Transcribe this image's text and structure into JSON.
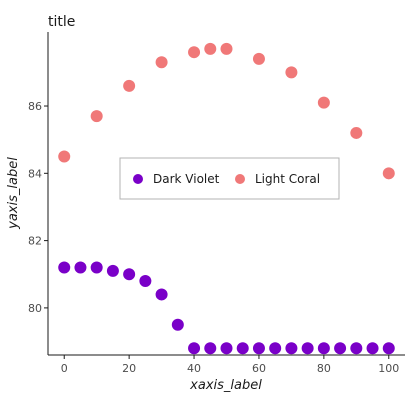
{
  "chart_data": {
    "type": "scatter",
    "title": "title",
    "xlabel": "xaxis_label",
    "ylabel": "yaxis_label",
    "xlim": [
      -5,
      105
    ],
    "ylim": [
      78.6,
      88.2
    ],
    "xticks": [
      0,
      20,
      40,
      60,
      80,
      100
    ],
    "yticks": [
      80,
      82,
      84,
      86
    ],
    "grid": false,
    "legend_position": "center",
    "series": [
      {
        "name": "Dark Violet",
        "color": "#7a00c8",
        "x": [
          0,
          5,
          10,
          15,
          20,
          25,
          30,
          35,
          40,
          45,
          50,
          55,
          60,
          65,
          70,
          75,
          80,
          85,
          90,
          95,
          100
        ],
        "y": [
          81.2,
          81.2,
          81.2,
          81.1,
          81.0,
          80.8,
          80.4,
          79.5,
          78.8,
          78.8,
          78.8,
          78.8,
          78.8,
          78.8,
          78.8,
          78.8,
          78.8,
          78.8,
          78.8,
          78.8,
          78.8
        ]
      },
      {
        "name": "Light Coral",
        "color": "#f07878",
        "x": [
          0,
          10,
          20,
          30,
          40,
          45,
          50,
          60,
          70,
          80,
          90,
          100
        ],
        "y": [
          84.5,
          85.7,
          86.6,
          87.3,
          87.6,
          87.7,
          87.7,
          87.4,
          87.0,
          86.1,
          85.2,
          84.0
        ]
      }
    ]
  }
}
